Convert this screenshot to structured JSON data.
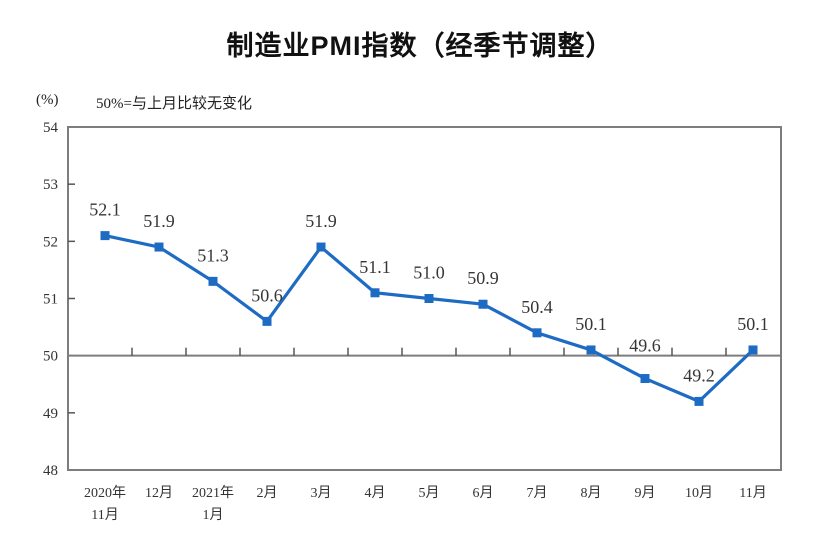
{
  "header": {
    "title": "制造业PMI指数（经季节调整）",
    "unit_label": "(%)",
    "subtitle": "50%=与上月比较无变化"
  },
  "chart_data": {
    "type": "line",
    "title": "制造业PMI指数（经季节调整）",
    "ylabel": "(%)",
    "annotation": "50%=与上月比较无变化",
    "categories": [
      [
        "2020年",
        "11月"
      ],
      [
        "12月"
      ],
      [
        "2021年",
        "1月"
      ],
      [
        "2月"
      ],
      [
        "3月"
      ],
      [
        "4月"
      ],
      [
        "5月"
      ],
      [
        "6月"
      ],
      [
        "7月"
      ],
      [
        "8月"
      ],
      [
        "9月"
      ],
      [
        "10月"
      ],
      [
        "11月"
      ]
    ],
    "values": [
      52.1,
      51.9,
      51.3,
      50.6,
      51.9,
      51.1,
      51.0,
      50.9,
      50.4,
      50.1,
      49.6,
      49.2,
      50.1
    ],
    "value_labels": [
      "52.1",
      "51.9",
      "51.3",
      "50.6",
      "51.9",
      "51.1",
      "51.0",
      "50.9",
      "50.4",
      "50.1",
      "49.6",
      "49.2",
      "50.1"
    ],
    "ylim": [
      48,
      54
    ],
    "yticks": [
      54,
      53,
      52,
      51,
      50,
      49,
      48
    ],
    "reference_line": 50,
    "grid": false,
    "legend": "none",
    "marker": "square",
    "line_color": "#1E6BC4",
    "axis_color": "#7d7d7d",
    "tick_color": "#555555",
    "label_color": "#363636"
  }
}
